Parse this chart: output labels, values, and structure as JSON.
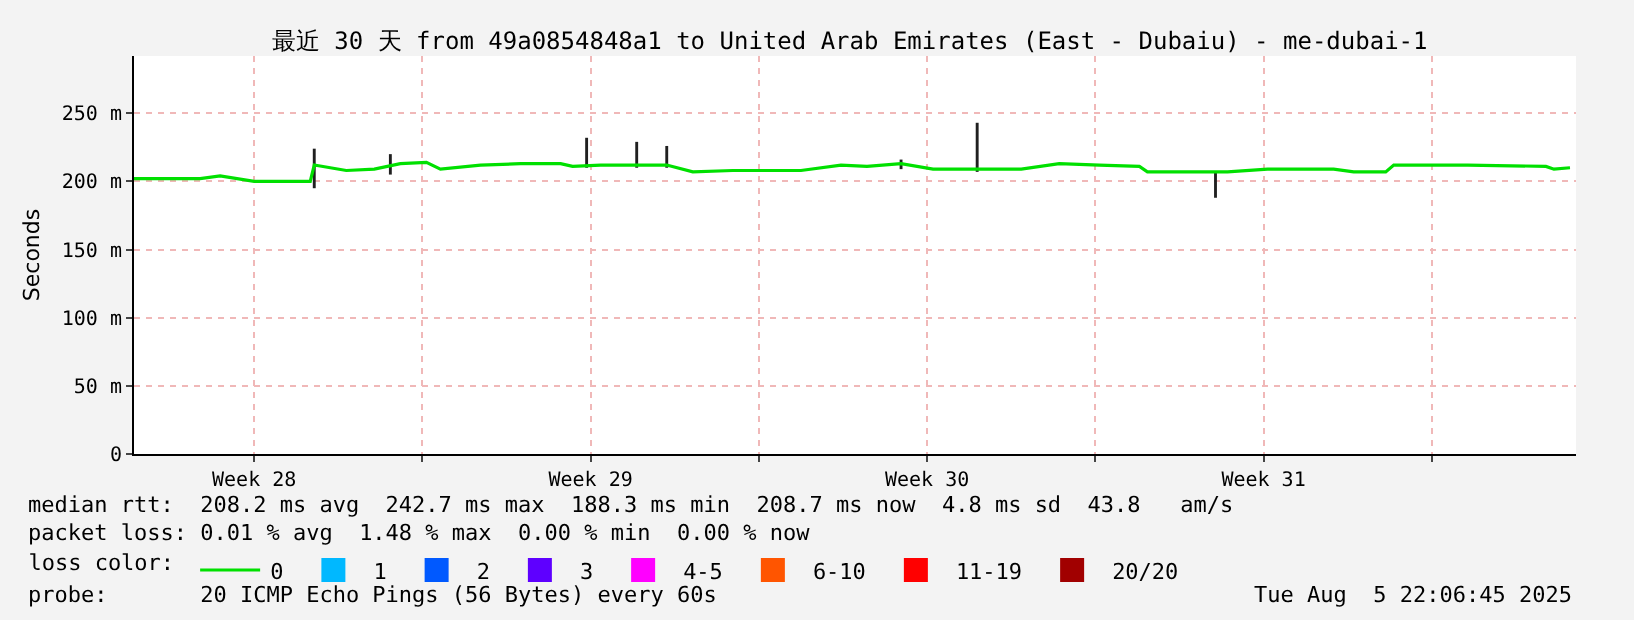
{
  "chart_data": {
    "type": "line",
    "title": "最近 30 天 from 49a0854848a1 to United Arab Emirates (East - Dubaiu) - me-dubai-1",
    "ylabel": "Seconds",
    "legend_title": "loss color:",
    "legend": "bottom",
    "grid": true,
    "line_style": "solid",
    "xlim": [
      "2025-07-08T00:00",
      "2025-08-07T00:00"
    ],
    "xticks": [
      {
        "value": "2025-07-10T12:00",
        "label": "Week 28"
      },
      {
        "value": "2025-07-14T00:00",
        "label": null
      },
      {
        "value": "2025-07-17T12:00",
        "label": "Week 29"
      },
      {
        "value": "2025-07-21T00:00",
        "label": null
      },
      {
        "value": "2025-07-24T12:00",
        "label": "Week 30"
      },
      {
        "value": "2025-07-28T00:00",
        "label": null
      },
      {
        "value": "2025-07-31T12:00",
        "label": "Week 31"
      },
      {
        "value": "2025-08-04T00:00",
        "label": null
      }
    ],
    "ylim": [
      0,
      292
    ],
    "yticks": [
      0,
      {
        "value": 50,
        "label": "50 m"
      },
      {
        "value": 100,
        "label": "100 m"
      },
      {
        "value": 150,
        "label": "150 m"
      },
      {
        "value": 200,
        "label": "200 m"
      },
      {
        "value": 250,
        "label": "250 m"
      }
    ],
    "series": [
      {
        "type": "bar",
        "color": "#202020",
        "x": [
          "2025-07-11T18:00",
          "2025-07-13T08:00",
          "2025-07-17T10:00",
          "2025-07-18T11:00",
          "2025-07-19T02:00",
          "2025-07-23T23:00",
          "2025-07-25T13:00",
          "2025-07-30T12:00"
        ],
        "base": [
          195,
          205,
          210,
          210,
          210,
          209,
          207,
          188
        ],
        "values": [
          29,
          15,
          22,
          19,
          16,
          7,
          36,
          19
        ]
      },
      {
        "name": "0",
        "color": "#00e000",
        "x": [
          "2025-07-08T00:00",
          "2025-07-09T09:00",
          "2025-07-09T19:00",
          "2025-07-10T12:00",
          "2025-07-11T16:00",
          "2025-07-11T18:00",
          "2025-07-12T10:00",
          "2025-07-13T00:00",
          "2025-07-13T13:00",
          "2025-07-14T02:00",
          "2025-07-14T09:00",
          "2025-07-15T05:00",
          "2025-07-16T01:00",
          "2025-07-16T21:00",
          "2025-07-17T03:00",
          "2025-07-17T17:00",
          "2025-07-19T02:00",
          "2025-07-19T15:00",
          "2025-07-20T11:00",
          "2025-07-21T21:00",
          "2025-07-22T17:00",
          "2025-07-23T06:00",
          "2025-07-23T23:00",
          "2025-07-24T15:00",
          "2025-07-25T14:00",
          "2025-07-26T11:00",
          "2025-07-27T06:00",
          "2025-07-28T02:00",
          "2025-07-28T22:00",
          "2025-07-29T02:00",
          "2025-07-30T11:00",
          "2025-07-30T18:00",
          "2025-07-31T14:00",
          "2025-08-01T23:00",
          "2025-08-02T09:00",
          "2025-08-03T01:00",
          "2025-08-03T05:00",
          "2025-08-04T18:00",
          "2025-08-06T09:00",
          "2025-08-06T13:00",
          "2025-08-06T21:00"
        ],
        "values": [
          202,
          202,
          204,
          200,
          200,
          212,
          208,
          209,
          213,
          214,
          209,
          212,
          213,
          213,
          211,
          212,
          212,
          207,
          208,
          208,
          212,
          211,
          213,
          209,
          209,
          209,
          213,
          212,
          211,
          207,
          207,
          207,
          209,
          209,
          207,
          207,
          212,
          212,
          211,
          209,
          210
        ]
      },
      {
        "type": "bar",
        "name": "1",
        "color": "#00b8ff"
      },
      {
        "type": "bar",
        "name": "2",
        "color": "#0059ff"
      },
      {
        "type": "bar",
        "name": "3",
        "color": "#5e00ff"
      },
      {
        "type": "bar",
        "name": "4-5",
        "color": "#ff00ff"
      },
      {
        "type": "bar",
        "name": "6-10",
        "color": "#ff5500"
      },
      {
        "type": "bar",
        "name": "11-19",
        "color": "#ff0000"
      },
      {
        "type": "bar",
        "name": "20/20",
        "color": "#a10000"
      }
    ],
    "annotations": [
      "median rtt:  208.2 ms avg  242.7 ms max  188.3 ms min  208.7 ms now  4.8 ms sd  43.8   am/s",
      "packet loss: 0.01 % avg  1.48 % max  0.00 % min  0.00 % now",
      "probe:       20 ICMP Echo Pings (56 Bytes) every 60s",
      "Tue Aug  5 22:06:45 2025"
    ]
  }
}
